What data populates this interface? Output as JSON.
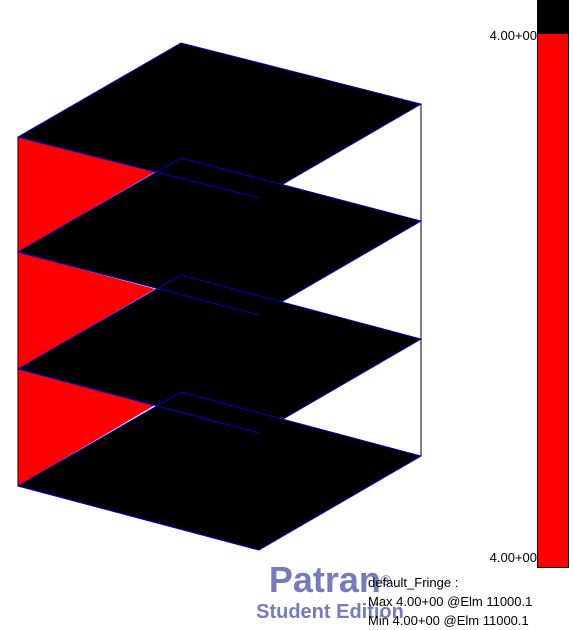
{
  "color_bar": {
    "max_label": "4.00+00",
    "min_label": "4.00+00",
    "colors": {
      "top_band": "#000000",
      "main": "#ff0000"
    }
  },
  "info": {
    "title": "default_Fringe :",
    "max_line": "Max 4.00+00 @Elm 11000.1",
    "min_line": "Min 4.00+00 @Elm 11000.1"
  },
  "watermark": {
    "name": "Patran",
    "registered": "®",
    "edition": "Student Edition"
  },
  "model": {
    "colors": {
      "fill_dark": "#000000",
      "fill_fringe": "#ff0000",
      "edge": "#0000cc",
      "wire": "#000000"
    }
  }
}
